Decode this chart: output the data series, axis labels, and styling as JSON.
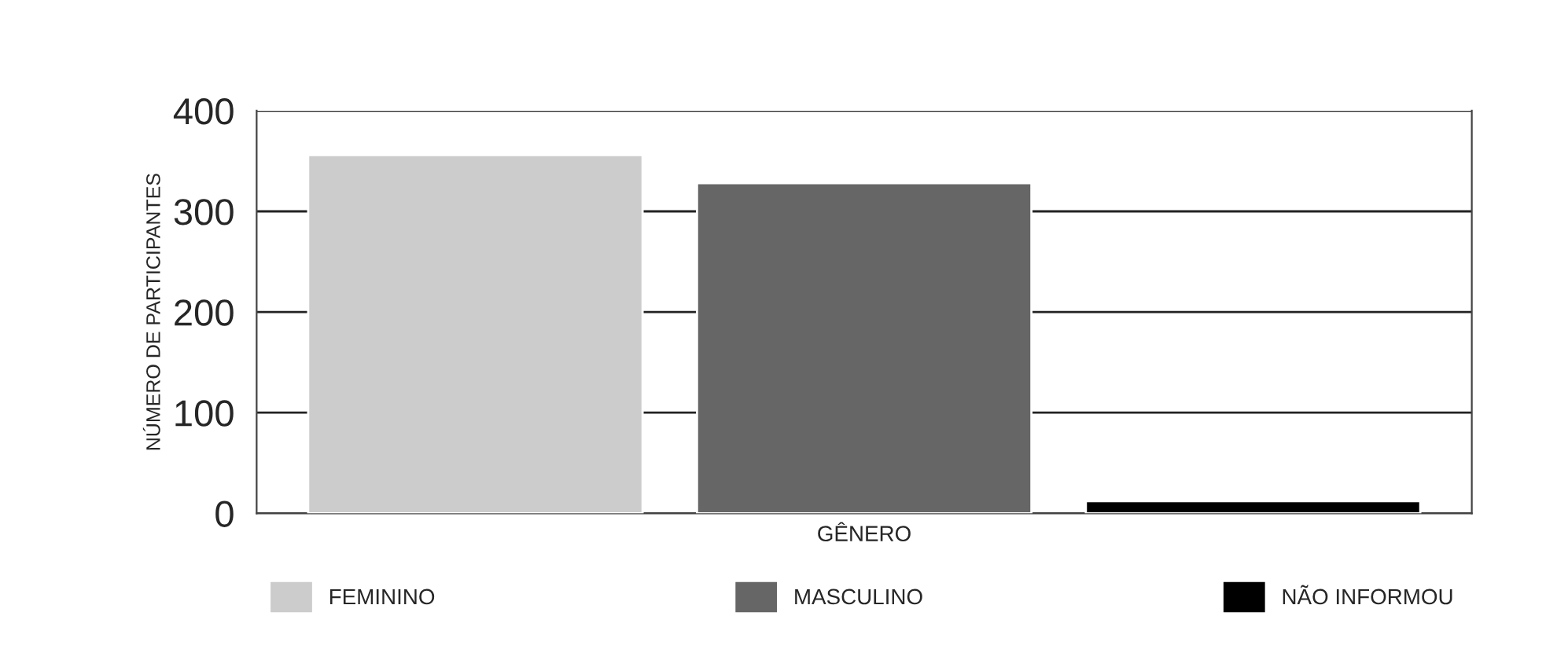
{
  "chart_data": {
    "type": "bar",
    "xlabel": "GÊNERO",
    "ylabel": "NÚMERO DE PARTICIPANTES",
    "categories": [
      null
    ],
    "series": [
      {
        "name": "FEMININO",
        "color": "#cccccc",
        "values": [
          356
        ]
      },
      {
        "name": "MASCULINO",
        "color": "#666666",
        "values": [
          328
        ]
      },
      {
        "name": "NÃO INFORMOU",
        "color": "#000000",
        "values": [
          12
        ]
      }
    ],
    "ylim": [
      0,
      400
    ],
    "yticks": [
      0,
      100,
      200,
      300,
      400
    ],
    "grid": "y",
    "legend": "bottom"
  }
}
